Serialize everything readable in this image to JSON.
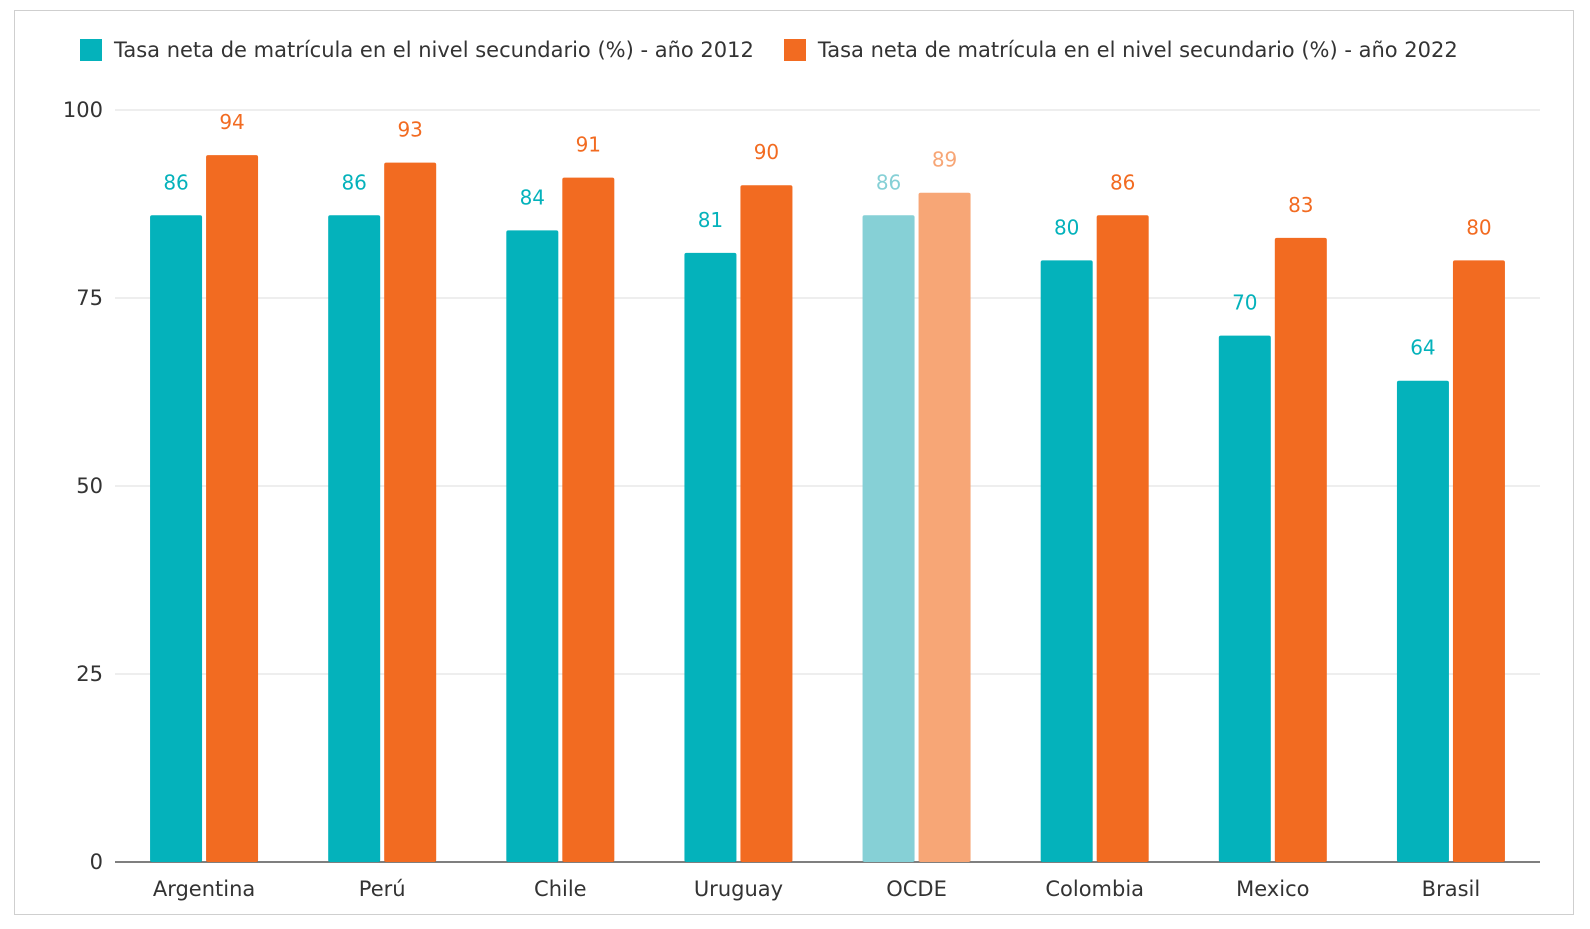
{
  "chart_data": {
    "type": "bar",
    "categories": [
      "Argentina",
      "Perú",
      "Chile",
      "Uruguay",
      "OCDE",
      "Colombia",
      "Mexico",
      "Brasil"
    ],
    "series": [
      {
        "name": "Tasa neta de matrícula en el nivel secundario (%) - año 2012",
        "color": "#04b2bb",
        "highlight_color": "#86d0d6",
        "values": [
          86,
          86,
          84,
          81,
          86,
          80,
          70,
          64
        ]
      },
      {
        "name": "Tasa neta de matrícula en el nivel secundario (%) - año 2022",
        "color": "#f26b21",
        "highlight_color": "#f7a676",
        "values": [
          94,
          93,
          91,
          90,
          89,
          86,
          83,
          80
        ]
      }
    ],
    "highlight_category": "OCDE",
    "ylim": [
      0,
      100
    ],
    "yticks": [
      0,
      25,
      50,
      75,
      100
    ],
    "grid": true,
    "legend_position": "top",
    "title": "",
    "xlabel": "",
    "ylabel": ""
  }
}
